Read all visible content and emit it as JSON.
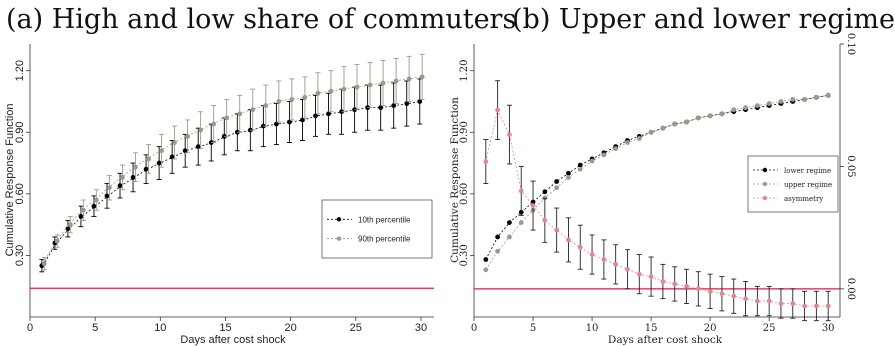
{
  "chart_data": [
    {
      "panel": "a",
      "type": "scatter",
      "title": "(a) High and low share of commuters",
      "xlabel": "Days after cost shock",
      "ylabel": "Cumulative Response Function",
      "xlim": [
        0,
        31
      ],
      "ylim": [
        0.0,
        1.33
      ],
      "xticks": [
        "0",
        "5",
        "10",
        "15",
        "20",
        "25",
        "30"
      ],
      "yticks": [
        "0.30",
        "0.60",
        "0.90",
        "1.20"
      ],
      "reference_line": {
        "y": 0.14,
        "color": "#d81b4a"
      },
      "x": [
        1,
        2,
        3,
        4,
        5,
        6,
        7,
        8,
        9,
        10,
        11,
        12,
        13,
        14,
        15,
        16,
        17,
        18,
        19,
        20,
        21,
        22,
        23,
        24,
        25,
        26,
        27,
        28,
        29,
        30
      ],
      "series": [
        {
          "name": "10th percentile",
          "color": "#000000",
          "values": [
            0.25,
            0.36,
            0.43,
            0.49,
            0.54,
            0.59,
            0.64,
            0.68,
            0.72,
            0.75,
            0.78,
            0.81,
            0.83,
            0.85,
            0.88,
            0.9,
            0.91,
            0.93,
            0.94,
            0.95,
            0.96,
            0.98,
            0.99,
            1.0,
            1.01,
            1.02,
            1.02,
            1.03,
            1.04,
            1.05
          ],
          "err": [
            0.03,
            0.03,
            0.04,
            0.05,
            0.05,
            0.06,
            0.06,
            0.07,
            0.07,
            0.08,
            0.08,
            0.08,
            0.09,
            0.09,
            0.09,
            0.09,
            0.1,
            0.1,
            0.1,
            0.1,
            0.1,
            0.1,
            0.1,
            0.11,
            0.11,
            0.11,
            0.11,
            0.11,
            0.11,
            0.11
          ]
        },
        {
          "name": "90th percentile",
          "color": "#9a9a88",
          "values": [
            0.26,
            0.37,
            0.45,
            0.52,
            0.57,
            0.63,
            0.68,
            0.73,
            0.77,
            0.81,
            0.85,
            0.88,
            0.91,
            0.94,
            0.97,
            0.99,
            1.01,
            1.03,
            1.05,
            1.06,
            1.07,
            1.09,
            1.1,
            1.11,
            1.12,
            1.13,
            1.14,
            1.15,
            1.16,
            1.17
          ],
          "err": [
            0.03,
            0.03,
            0.04,
            0.05,
            0.05,
            0.06,
            0.06,
            0.07,
            0.07,
            0.08,
            0.08,
            0.08,
            0.09,
            0.09,
            0.09,
            0.09,
            0.1,
            0.1,
            0.1,
            0.1,
            0.1,
            0.1,
            0.1,
            0.11,
            0.11,
            0.11,
            0.11,
            0.11,
            0.11,
            0.11
          ]
        }
      ],
      "legend": {
        "placement": "inside-right"
      }
    },
    {
      "panel": "b",
      "type": "scatter",
      "title": "(b) Upper and lower regime",
      "xlabel": "Days after cost shock",
      "ylabel": "Cumulative Response Function",
      "xlim": [
        0,
        31
      ],
      "ylim": [
        0.0,
        1.33
      ],
      "xticks": [
        "0",
        "5",
        "10",
        "15",
        "20",
        "25",
        "30"
      ],
      "yticks": [
        "0.30",
        "0.60",
        "0.90",
        "1.20"
      ],
      "y2lim": [
        -0.0115,
        0.1
      ],
      "y2ticks": [
        "0.00",
        "0.05",
        "0.10"
      ],
      "reference_line": {
        "y2": 0.0,
        "color": "#d81b4a"
      },
      "x": [
        1,
        2,
        3,
        4,
        5,
        6,
        7,
        8,
        9,
        10,
        11,
        12,
        13,
        14,
        15,
        16,
        17,
        18,
        19,
        20,
        21,
        22,
        23,
        24,
        25,
        26,
        27,
        28,
        29,
        30
      ],
      "series": [
        {
          "name": "lower regime",
          "color": "#000000",
          "axis": "left",
          "values": [
            0.28,
            0.39,
            0.46,
            0.51,
            0.56,
            0.61,
            0.66,
            0.7,
            0.74,
            0.77,
            0.8,
            0.83,
            0.86,
            0.88,
            0.9,
            0.92,
            0.94,
            0.95,
            0.97,
            0.98,
            0.99,
            1.0,
            1.01,
            1.02,
            1.03,
            1.04,
            1.05,
            1.06,
            1.07,
            1.08
          ]
        },
        {
          "name": "upper regime",
          "color": "#9a9a88",
          "axis": "left",
          "values": [
            0.23,
            0.32,
            0.39,
            0.46,
            0.52,
            0.58,
            0.63,
            0.68,
            0.72,
            0.76,
            0.79,
            0.82,
            0.85,
            0.87,
            0.9,
            0.92,
            0.94,
            0.95,
            0.97,
            0.98,
            0.99,
            1.01,
            1.02,
            1.03,
            1.04,
            1.05,
            1.06,
            1.06,
            1.07,
            1.08
          ]
        },
        {
          "name": "asymmetry",
          "color": "#e08890",
          "axis": "right",
          "values": [
            0.052,
            0.073,
            0.063,
            0.04,
            0.034,
            0.028,
            0.024,
            0.02,
            0.017,
            0.014,
            0.012,
            0.01,
            0.008,
            0.006,
            0.005,
            0.003,
            0.002,
            0.001,
            0.0,
            -0.001,
            -0.002,
            -0.003,
            -0.004,
            -0.005,
            -0.005,
            -0.006,
            -0.006,
            -0.007,
            -0.007,
            -0.007
          ],
          "err": [
            0.009,
            0.012,
            0.012,
            0.01,
            0.01,
            0.009,
            0.009,
            0.009,
            0.009,
            0.008,
            0.008,
            0.008,
            0.008,
            0.008,
            0.008,
            0.007,
            0.007,
            0.007,
            0.007,
            0.007,
            0.007,
            0.007,
            0.007,
            0.006,
            0.006,
            0.006,
            0.006,
            0.006,
            0.006,
            0.006
          ]
        }
      ],
      "legend": {
        "placement": "inside-right"
      }
    }
  ]
}
